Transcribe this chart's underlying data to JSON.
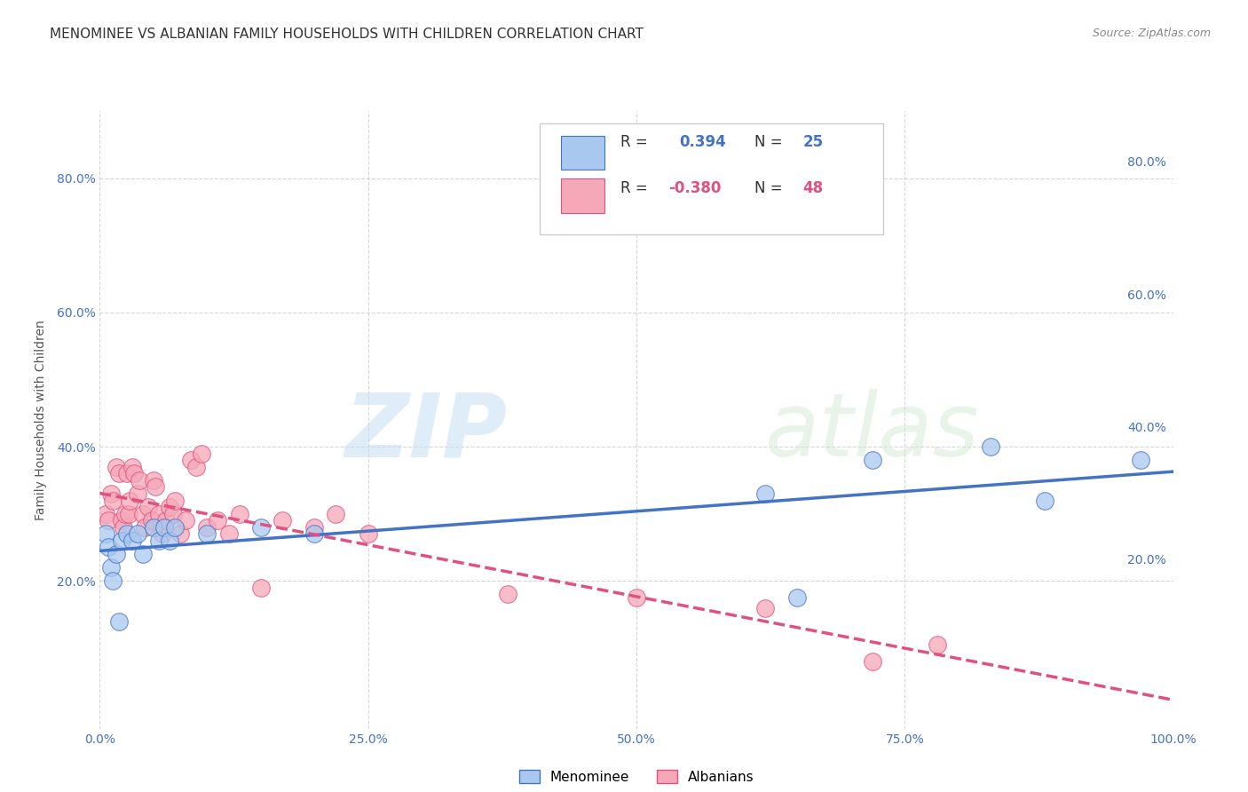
{
  "title": "MENOMINEE VS ALBANIAN FAMILY HOUSEHOLDS WITH CHILDREN CORRELATION CHART",
  "source": "Source: ZipAtlas.com",
  "ylabel": "Family Households with Children",
  "xlim": [
    0.0,
    1.0
  ],
  "ylim": [
    -0.02,
    0.9
  ],
  "xticks": [
    0.0,
    0.25,
    0.5,
    0.75,
    1.0
  ],
  "xticklabels": [
    "0.0%",
    "25.0%",
    "50.0%",
    "75.0%",
    "100.0%"
  ],
  "yticks": [
    0.2,
    0.4,
    0.6,
    0.8
  ],
  "yticklabels": [
    "20.0%",
    "40.0%",
    "60.0%",
    "80.0%"
  ],
  "menominee_color": "#a8c8f0",
  "albanian_color": "#f5a8b8",
  "menominee_line_color": "#4472c4",
  "albanian_line_color": "#e05080",
  "background_color": "#ffffff",
  "grid_color": "#cccccc",
  "title_fontsize": 11,
  "axis_label_fontsize": 10,
  "tick_fontsize": 10,
  "menominee_x": [
    0.005,
    0.008,
    0.01,
    0.012,
    0.015,
    0.018,
    0.02,
    0.025,
    0.03,
    0.035,
    0.04,
    0.05,
    0.055,
    0.06,
    0.065,
    0.07,
    0.1,
    0.15,
    0.2,
    0.62,
    0.65,
    0.72,
    0.83,
    0.88,
    0.97
  ],
  "menominee_y": [
    0.27,
    0.25,
    0.22,
    0.2,
    0.24,
    0.14,
    0.26,
    0.27,
    0.26,
    0.27,
    0.24,
    0.28,
    0.26,
    0.28,
    0.26,
    0.28,
    0.27,
    0.28,
    0.27,
    0.33,
    0.175,
    0.38,
    0.4,
    0.32,
    0.38
  ],
  "albanian_x": [
    0.005,
    0.008,
    0.01,
    0.012,
    0.015,
    0.018,
    0.02,
    0.022,
    0.024,
    0.025,
    0.027,
    0.028,
    0.03,
    0.032,
    0.035,
    0.037,
    0.04,
    0.042,
    0.045,
    0.048,
    0.05,
    0.052,
    0.055,
    0.058,
    0.06,
    0.062,
    0.065,
    0.068,
    0.07,
    0.075,
    0.08,
    0.085,
    0.09,
    0.095,
    0.1,
    0.11,
    0.12,
    0.13,
    0.15,
    0.17,
    0.2,
    0.22,
    0.25,
    0.38,
    0.5,
    0.62,
    0.72,
    0.78
  ],
  "albanian_y": [
    0.3,
    0.29,
    0.33,
    0.32,
    0.37,
    0.36,
    0.29,
    0.28,
    0.3,
    0.36,
    0.3,
    0.32,
    0.37,
    0.36,
    0.33,
    0.35,
    0.3,
    0.28,
    0.31,
    0.29,
    0.35,
    0.34,
    0.3,
    0.27,
    0.28,
    0.29,
    0.31,
    0.3,
    0.32,
    0.27,
    0.29,
    0.38,
    0.37,
    0.39,
    0.28,
    0.29,
    0.27,
    0.3,
    0.19,
    0.29,
    0.28,
    0.3,
    0.27,
    0.18,
    0.175,
    0.16,
    0.08,
    0.105
  ],
  "watermark_zip": "ZIP",
  "watermark_atlas": "atlas",
  "legend_label1": "Menominee",
  "legend_label2": "Albanians"
}
